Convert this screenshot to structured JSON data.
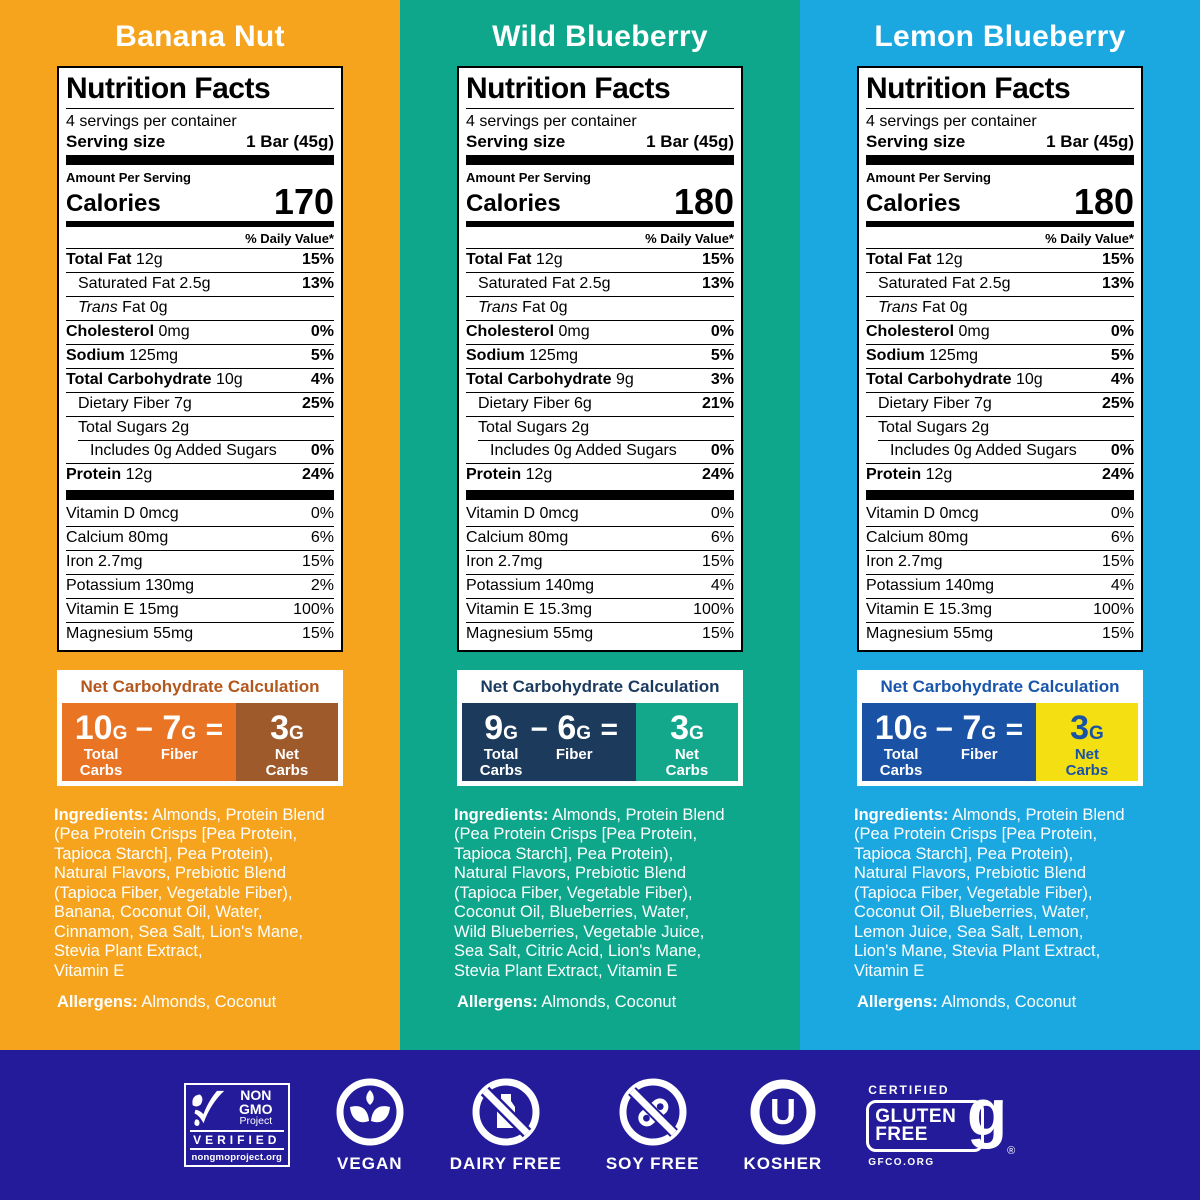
{
  "panels": [
    {
      "title": "Banana Nut",
      "theme": {
        "bg": "#F6A41E",
        "calc_title": "#B4571D",
        "calc_left": "#E87424",
        "calc_right": "#9E5A2A",
        "calc_right_text": "#FFFFFF"
      },
      "label": {
        "title": "Nutrition Facts",
        "servings_per_container": "4 servings per container",
        "serving_size_label": "Serving size",
        "serving_size_value": "1 Bar (45g)",
        "amount_per_serving": "Amount Per Serving",
        "calories_label": "Calories",
        "calories_value": "170",
        "daily_value_header": "% Daily Value*",
        "rows": [
          {
            "label": "Total Fat",
            "amount": "12g",
            "pct": "15%",
            "bold": true,
            "indent": 0
          },
          {
            "label": "Saturated Fat",
            "amount": "2.5g",
            "pct": "13%",
            "bold": false,
            "indent": 1
          },
          {
            "italic_prefix": "Trans",
            "label": "Fat",
            "amount": "0g",
            "pct": "",
            "bold": false,
            "indent": 1
          },
          {
            "label": "Cholesterol",
            "amount": "0mg",
            "pct": "0%",
            "bold": true,
            "indent": 0
          },
          {
            "label": "Sodium",
            "amount": "125mg",
            "pct": "5%",
            "bold": true,
            "indent": 0
          },
          {
            "label": "Total Carbohydrate",
            "amount": "10g",
            "pct": "4%",
            "bold": true,
            "indent": 0
          },
          {
            "label": "Dietary Fiber",
            "amount": "7g",
            "pct": "25%",
            "bold": false,
            "indent": 1
          },
          {
            "label": "Total Sugars",
            "amount": "2g",
            "pct": "",
            "bold": false,
            "indent": 1
          },
          {
            "label": "Includes 0g Added Sugars",
            "amount": "",
            "pct": "0%",
            "bold": false,
            "indent": 2,
            "partial_rule": true
          },
          {
            "label": "Protein",
            "amount": "12g",
            "pct": "24%",
            "bold": true,
            "indent": 0
          }
        ],
        "vitamins": [
          {
            "label": "Vitamin D 0mcg",
            "pct": "0%"
          },
          {
            "label": "Calcium 80mg",
            "pct": "6%"
          },
          {
            "label": "Iron 2.7mg",
            "pct": "15%"
          },
          {
            "label": "Potassium 130mg",
            "pct": "2%"
          },
          {
            "label": "Vitamin E 15mg",
            "pct": "100%"
          },
          {
            "label": "Magnesium 55mg",
            "pct": "15%"
          }
        ]
      },
      "net_carb": {
        "title": "Net Carbohydrate Calculation",
        "total_value": "10",
        "total_unit": "G",
        "total_label": "Total\nCarbs",
        "minus": "−",
        "fiber_value": "7",
        "fiber_unit": "G",
        "fiber_label": "Fiber",
        "equals": "=",
        "net_value": "3",
        "net_unit": "G",
        "net_label": "Net\nCarbs"
      },
      "ingredients_label": "Ingredients:",
      "ingredients_lines": [
        "Almonds, Protein Blend",
        "(Pea Protein Crisps [Pea Protein,",
        "Tapioca Starch], Pea Protein),",
        "Natural Flavors, Prebiotic Blend",
        "(Tapioca Fiber, Vegetable Fiber),",
        "Banana, Coconut Oil, Water,",
        "Cinnamon, Sea Salt, Lion's Mane,",
        "Stevia Plant Extract,",
        "Vitamin E"
      ],
      "allergens_label": "Allergens:",
      "allergens_value": "Almonds, Coconut"
    },
    {
      "title": "Wild Blueberry",
      "theme": {
        "bg": "#0EA78C",
        "calc_title": "#1B3A5E",
        "calc_left": "#1C3A5C",
        "calc_right": "#13A78B",
        "calc_right_text": "#FFFFFF"
      },
      "label": {
        "title": "Nutrition Facts",
        "servings_per_container": "4 servings per container",
        "serving_size_label": "Serving size",
        "serving_size_value": "1 Bar (45g)",
        "amount_per_serving": "Amount Per Serving",
        "calories_label": "Calories",
        "calories_value": "180",
        "daily_value_header": "% Daily Value*",
        "rows": [
          {
            "label": "Total Fat",
            "amount": "12g",
            "pct": "15%",
            "bold": true,
            "indent": 0
          },
          {
            "label": "Saturated Fat",
            "amount": "2.5g",
            "pct": "13%",
            "bold": false,
            "indent": 1
          },
          {
            "italic_prefix": "Trans",
            "label": "Fat",
            "amount": "0g",
            "pct": "",
            "bold": false,
            "indent": 1
          },
          {
            "label": "Cholesterol",
            "amount": "0mg",
            "pct": "0%",
            "bold": true,
            "indent": 0
          },
          {
            "label": "Sodium",
            "amount": "125mg",
            "pct": "5%",
            "bold": true,
            "indent": 0
          },
          {
            "label": "Total Carbohydrate",
            "amount": "9g",
            "pct": "3%",
            "bold": true,
            "indent": 0
          },
          {
            "label": "Dietary Fiber",
            "amount": "6g",
            "pct": "21%",
            "bold": false,
            "indent": 1
          },
          {
            "label": "Total Sugars",
            "amount": "2g",
            "pct": "",
            "bold": false,
            "indent": 1
          },
          {
            "label": "Includes 0g Added Sugars",
            "amount": "",
            "pct": "0%",
            "bold": false,
            "indent": 2,
            "partial_rule": true
          },
          {
            "label": "Protein",
            "amount": "12g",
            "pct": "24%",
            "bold": true,
            "indent": 0
          }
        ],
        "vitamins": [
          {
            "label": "Vitamin D 0mcg",
            "pct": "0%"
          },
          {
            "label": "Calcium 80mg",
            "pct": "6%"
          },
          {
            "label": "Iron 2.7mg",
            "pct": "15%"
          },
          {
            "label": "Potassium 140mg",
            "pct": "4%"
          },
          {
            "label": "Vitamin E 15.3mg",
            "pct": "100%"
          },
          {
            "label": "Magnesium 55mg",
            "pct": "15%"
          }
        ]
      },
      "net_carb": {
        "title": "Net Carbohydrate Calculation",
        "total_value": "9",
        "total_unit": "G",
        "total_label": "Total\nCarbs",
        "minus": "−",
        "fiber_value": "6",
        "fiber_unit": "G",
        "fiber_label": "Fiber",
        "equals": "=",
        "net_value": "3",
        "net_unit": "G",
        "net_label": "Net\nCarbs"
      },
      "ingredients_label": "Ingredients:",
      "ingredients_lines": [
        "Almonds, Protein Blend",
        "(Pea Protein Crisps [Pea Protein,",
        "Tapioca Starch], Pea Protein),",
        "Natural Flavors, Prebiotic Blend",
        "(Tapioca Fiber, Vegetable Fiber),",
        "Coconut Oil, Blueberries, Water,",
        "Wild Blueberries, Vegetable Juice,",
        "Sea Salt, Citric Acid, Lion's Mane,",
        "Stevia Plant Extract, Vitamin E"
      ],
      "allergens_label": "Allergens:",
      "allergens_value": "Almonds, Coconut"
    },
    {
      "title": "Lemon Blueberry",
      "theme": {
        "bg": "#1BA8E0",
        "calc_title": "#1A55AC",
        "calc_left": "#1A52A5",
        "calc_right": "#F4DF12",
        "calc_right_text": "#1A52A5"
      },
      "label": {
        "title": "Nutrition Facts",
        "servings_per_container": "4 servings per container",
        "serving_size_label": "Serving size",
        "serving_size_value": "1 Bar (45g)",
        "amount_per_serving": "Amount Per Serving",
        "calories_label": "Calories",
        "calories_value": "180",
        "daily_value_header": "% Daily Value*",
        "rows": [
          {
            "label": "Total Fat",
            "amount": "12g",
            "pct": "15%",
            "bold": true,
            "indent": 0
          },
          {
            "label": "Saturated Fat",
            "amount": "2.5g",
            "pct": "13%",
            "bold": false,
            "indent": 1
          },
          {
            "italic_prefix": "Trans",
            "label": "Fat",
            "amount": "0g",
            "pct": "",
            "bold": false,
            "indent": 1
          },
          {
            "label": "Cholesterol",
            "amount": "0mg",
            "pct": "0%",
            "bold": true,
            "indent": 0
          },
          {
            "label": "Sodium",
            "amount": "125mg",
            "pct": "5%",
            "bold": true,
            "indent": 0
          },
          {
            "label": "Total Carbohydrate",
            "amount": "10g",
            "pct": "4%",
            "bold": true,
            "indent": 0
          },
          {
            "label": "Dietary Fiber",
            "amount": "7g",
            "pct": "25%",
            "bold": false,
            "indent": 1
          },
          {
            "label": "Total Sugars",
            "amount": "2g",
            "pct": "",
            "bold": false,
            "indent": 1
          },
          {
            "label": "Includes 0g Added Sugars",
            "amount": "",
            "pct": "0%",
            "bold": false,
            "indent": 2,
            "partial_rule": true
          },
          {
            "label": "Protein",
            "amount": "12g",
            "pct": "24%",
            "bold": true,
            "indent": 0
          }
        ],
        "vitamins": [
          {
            "label": "Vitamin D 0mcg",
            "pct": "0%"
          },
          {
            "label": "Calcium 80mg",
            "pct": "6%"
          },
          {
            "label": "Iron 2.7mg",
            "pct": "15%"
          },
          {
            "label": "Potassium 140mg",
            "pct": "4%"
          },
          {
            "label": "Vitamin E 15.3mg",
            "pct": "100%"
          },
          {
            "label": "Magnesium 55mg",
            "pct": "15%"
          }
        ]
      },
      "net_carb": {
        "title": "Net Carbohydrate Calculation",
        "total_value": "10",
        "total_unit": "G",
        "total_label": "Total\nCarbs",
        "minus": "−",
        "fiber_value": "7",
        "fiber_unit": "G",
        "fiber_label": "Fiber",
        "equals": "=",
        "net_value": "3",
        "net_unit": "G",
        "net_label": "Net\nCarbs"
      },
      "ingredients_label": "Ingredients:",
      "ingredients_lines": [
        "Almonds, Protein Blend",
        "(Pea Protein Crisps [Pea Protein,",
        "Tapioca Starch], Pea Protein),",
        "Natural Flavors, Prebiotic Blend",
        "(Tapioca Fiber, Vegetable Fiber),",
        "Coconut Oil, Blueberries, Water,",
        "Lemon Juice, Sea Salt, Lemon,",
        "Lion's Mane, Stevia Plant Extract,",
        "Vitamin E"
      ],
      "allergens_label": "Allergens:",
      "allergens_value": "Almonds, Coconut"
    }
  ],
  "footer": {
    "bg": "#241B9B",
    "non_gmo": {
      "line1": "NON",
      "line2": "GMO",
      "line3": "Project",
      "verified": "VERIFIED",
      "url": "nongmoproject.org"
    },
    "vegan_label": "VEGAN",
    "dairy_free_label": "DAIRY FREE",
    "soy_free_label": "SOY FREE",
    "kosher_label": "KOSHER",
    "kosher_symbol": "U",
    "gluten_free": {
      "certified": "CERTIFIED",
      "word1": "GLUTEN",
      "word2": "FREE",
      "g": "g",
      "reg": "®",
      "url": "GFCO.ORG"
    }
  }
}
